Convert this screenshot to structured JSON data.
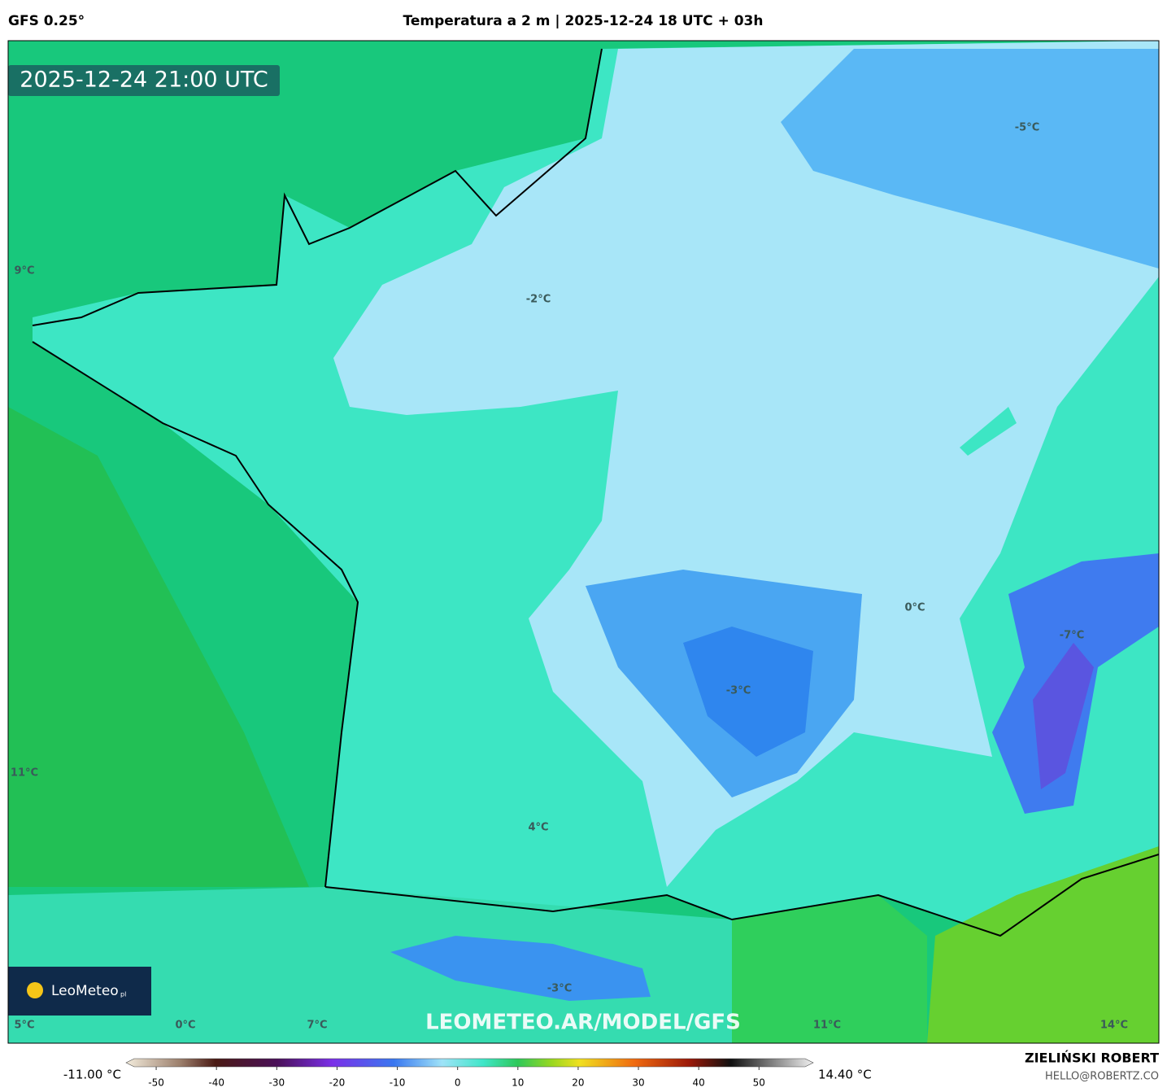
{
  "header": {
    "model": "GFS 0.25°",
    "title": "Temperatura a 2 m | 2025-12-24 18 UTC + 03h"
  },
  "map": {
    "timestamp": "2025-12-24 21:00 UTC",
    "labels": [
      "9°C",
      "-2°C",
      "-5°C",
      "0°C",
      "-7°C",
      "-3°C",
      "11°C",
      "4°C",
      "-3°C",
      "5°C",
      "0°C",
      "7°C",
      "11°C",
      "14°C"
    ],
    "watermark": "LEOMETEO.AR/MODEL/GFS",
    "logo": {
      "name": "LeoMeteo",
      "suffix": "pl"
    }
  },
  "colorbar": {
    "min_label": "-11.00 °C",
    "max_label": "14.40 °C",
    "lim": [
      -55,
      59
    ],
    "ticks": [
      -50,
      -40,
      -30,
      -20,
      -10,
      0,
      10,
      20,
      30,
      40,
      50
    ]
  },
  "credits": {
    "author": "ZIELIŃSKI ROBERT",
    "email": "HELLO@ROBERTZ.CO"
  }
}
